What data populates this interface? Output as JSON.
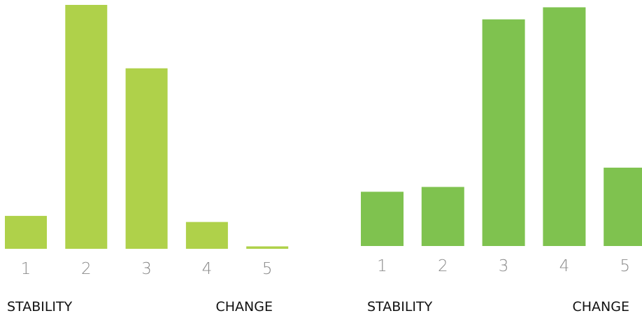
{
  "chart_data": [
    {
      "type": "bar",
      "categories": [
        "1",
        "2",
        "3",
        "4",
        "5"
      ],
      "values": [
        13.5,
        100,
        74,
        11,
        1
      ],
      "ylim": [
        0,
        100
      ],
      "grid": false,
      "bar_color": "#afd14a",
      "left_label": "STABILITY",
      "right_label": "CHANGE"
    },
    {
      "type": "bar",
      "categories": [
        "1",
        "2",
        "3",
        "4",
        "5"
      ],
      "values": [
        22.5,
        24.5,
        94,
        99,
        32.5
      ],
      "ylim": [
        0,
        100
      ],
      "grid": false,
      "bar_color": "#7fc24f",
      "left_label": "STABILITY",
      "right_label": "CHANGE"
    }
  ]
}
